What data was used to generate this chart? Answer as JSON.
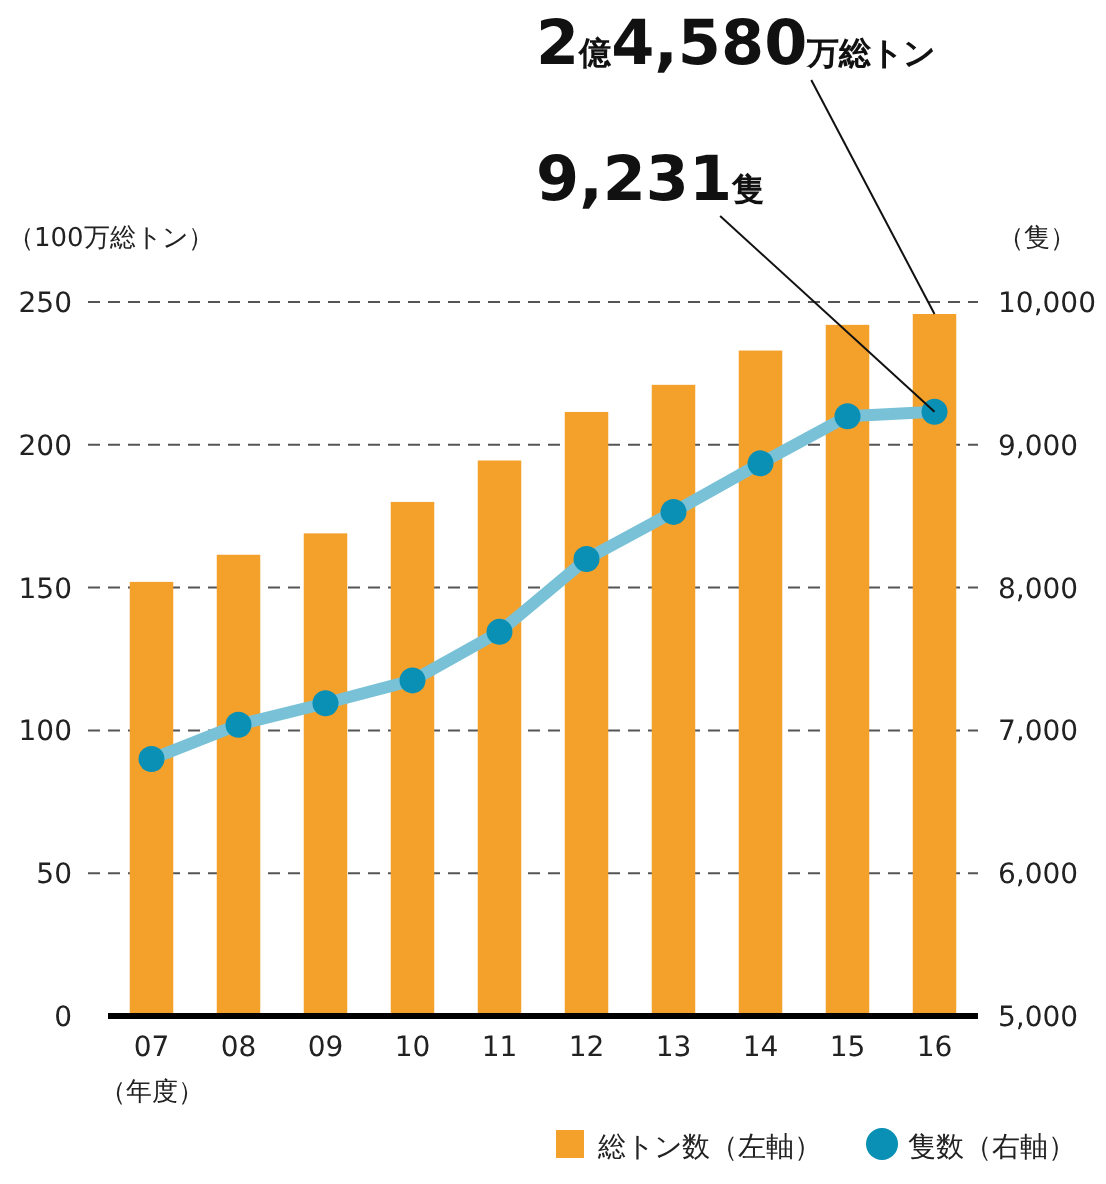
{
  "chart_data": {
    "type": "bar",
    "categories": [
      "07",
      "08",
      "09",
      "10",
      "11",
      "12",
      "13",
      "14",
      "15",
      "16"
    ],
    "series": [
      {
        "name": "総トン数（左軸）",
        "color": "#f4a12c",
        "values": [
          152,
          161.5,
          169,
          180,
          194.5,
          211.5,
          221,
          233,
          242,
          245.8
        ]
      },
      {
        "name": "隻数（右軸）",
        "type": "line",
        "axis": "y2",
        "color": "#0a8fb5",
        "marker": "circle",
        "values": [
          6800,
          7040,
          7190,
          7350,
          7690,
          8200,
          8530,
          8870,
          9200,
          9231
        ]
      }
    ],
    "ylabel": "（100万総トン）",
    "y2label": "（隻）",
    "xlabel": "（年度）",
    "ylim": [
      0,
      250
    ],
    "yticks": [
      0,
      50,
      100,
      150,
      200,
      250
    ],
    "y2lim": [
      5000,
      10000
    ],
    "y2ticks": [
      {
        "value": 5000,
        "label": "5,000"
      },
      {
        "value": 6000,
        "label": "6,000"
      },
      {
        "value": 7000,
        "label": "7,000"
      },
      {
        "value": 8000,
        "label": "8,000"
      },
      {
        "value": 9000,
        "label": "9,000"
      },
      {
        "value": 10000,
        "label": "10,000"
      }
    ],
    "grid": "y",
    "legend": "bottom right",
    "annotations": [
      {
        "text": "2億4,580万総トン",
        "x": "16",
        "y": 245.8
      },
      {
        "text": "9,231隻",
        "x": "16",
        "y": 211.6
      }
    ]
  }
}
